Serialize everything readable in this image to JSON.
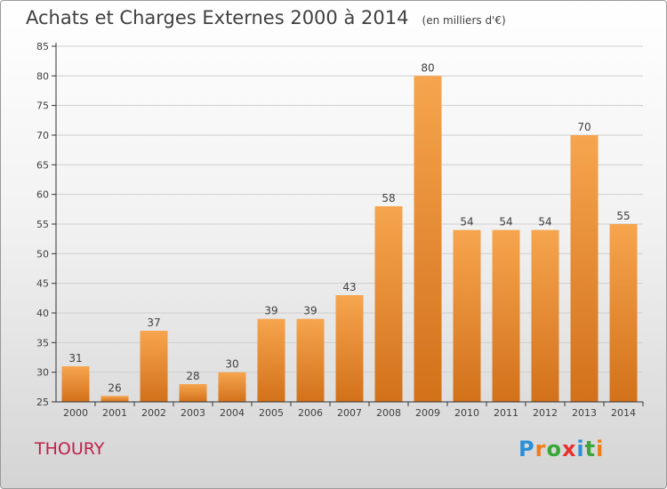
{
  "title": "Achats et Charges Externes 2000 à 2014",
  "unit_note": "(en milliers d'€)",
  "commune": "THOURY",
  "brand": {
    "letters": [
      "P",
      "r",
      "o",
      "x",
      "i",
      "t",
      "i"
    ],
    "colors": [
      "#2a8fd8",
      "#f07d1a",
      "#3aa63a",
      "#e8302c",
      "#2a8fd8",
      "#3aa63a",
      "#f07d1a"
    ]
  },
  "colors": {
    "bar_top": "#f6a54e",
    "bar_bottom": "#d2711a",
    "axis": "#333333",
    "grid": "#cfcfcf"
  },
  "chart_data": {
    "type": "bar",
    "categories": [
      "2000",
      "2001",
      "2002",
      "2003",
      "2004",
      "2005",
      "2006",
      "2007",
      "2008",
      "2009",
      "2010",
      "2011",
      "2012",
      "2013",
      "2014"
    ],
    "values": [
      31,
      26,
      37,
      28,
      30,
      39,
      39,
      43,
      58,
      80,
      54,
      54,
      54,
      70,
      55
    ],
    "ylim": [
      25,
      85
    ],
    "yticks": [
      25,
      30,
      35,
      40,
      45,
      50,
      55,
      60,
      65,
      70,
      75,
      80,
      85
    ],
    "grid": true,
    "data_labels": true
  }
}
